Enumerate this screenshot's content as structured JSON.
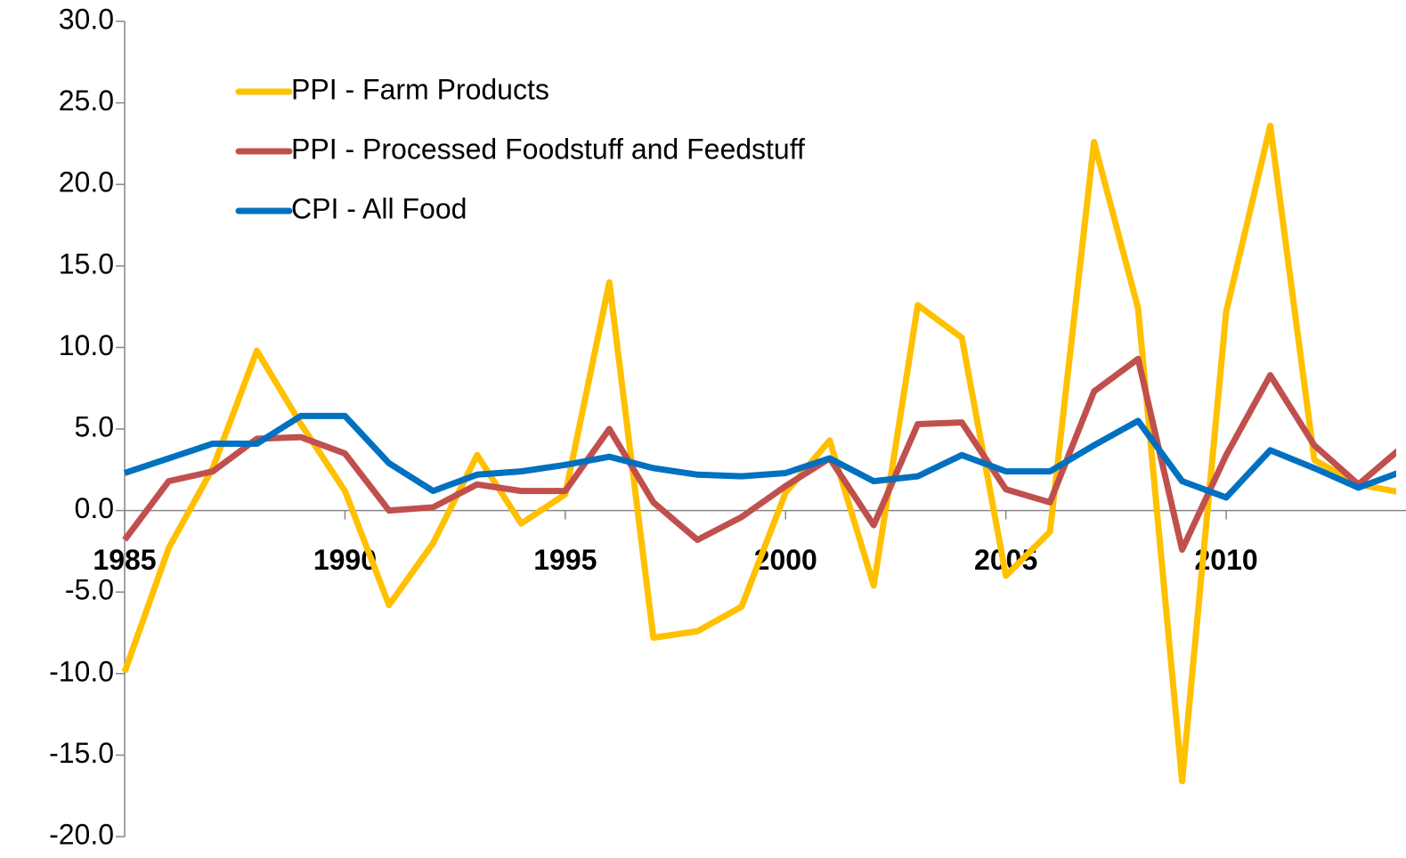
{
  "chart_data": {
    "type": "line",
    "x": [
      1985,
      1986,
      1987,
      1988,
      1989,
      1990,
      1991,
      1992,
      1993,
      1994,
      1995,
      1996,
      1997,
      1998,
      1999,
      2000,
      2001,
      2002,
      2003,
      2004,
      2005,
      2006,
      2007,
      2008,
      2009,
      2010,
      2011,
      2012,
      2013,
      2014
    ],
    "series": [
      {
        "name": "PPI - Farm Products",
        "color": "#ffc000",
        "values": [
          -9.9,
          -2.3,
          2.6,
          9.8,
          5.3,
          1.2,
          -5.8,
          -2.0,
          3.4,
          -0.8,
          1.0,
          14.0,
          -7.8,
          -7.4,
          -5.9,
          1.1,
          4.3,
          -4.6,
          12.6,
          10.6,
          -4.0,
          -1.3,
          22.6,
          12.4,
          -16.6,
          12.2,
          23.6,
          3.1,
          1.6,
          1.1
        ]
      },
      {
        "name": "PPI - Processed Foodstuff and Feedstuff",
        "color": "#c0504d",
        "values": [
          -1.8,
          1.8,
          2.4,
          4.4,
          4.5,
          3.5,
          0.0,
          0.2,
          1.6,
          1.2,
          1.2,
          5.0,
          0.5,
          -1.8,
          -0.4,
          1.5,
          3.2,
          -0.9,
          5.3,
          5.4,
          1.3,
          0.5,
          7.3,
          9.3,
          -2.4,
          3.4,
          8.3,
          4.0,
          1.6,
          3.9
        ]
      },
      {
        "name": "CPI - All Food",
        "color": "#0070c0",
        "values": [
          2.3,
          3.2,
          4.1,
          4.1,
          5.8,
          5.8,
          2.9,
          1.2,
          2.2,
          2.4,
          2.8,
          3.3,
          2.6,
          2.2,
          2.1,
          2.3,
          3.2,
          1.8,
          2.1,
          3.4,
          2.4,
          2.4,
          4.0,
          5.5,
          1.8,
          0.8,
          3.7,
          2.6,
          1.4,
          2.4
        ]
      }
    ],
    "xlim": [
      1985,
      2014
    ],
    "xticks": [
      1985,
      1990,
      1995,
      2000,
      2005,
      2010
    ],
    "ylim": [
      -20,
      30
    ],
    "yticks": [
      {
        "value": -20,
        "label": "-20.0"
      },
      {
        "value": -15,
        "label": "-15.0"
      },
      {
        "value": -10,
        "label": "-10.0"
      },
      {
        "value": -5,
        "label": "-5.0"
      },
      {
        "value": 0,
        "label": "0.0"
      },
      {
        "value": 5,
        "label": "5.0"
      },
      {
        "value": 10,
        "label": "10.0"
      },
      {
        "value": 15,
        "label": "15.0"
      },
      {
        "value": 20,
        "label": "20.0"
      },
      {
        "value": 25,
        "label": "25.0"
      },
      {
        "value": 30,
        "label": "30.0"
      }
    ],
    "legend": "top-left"
  }
}
